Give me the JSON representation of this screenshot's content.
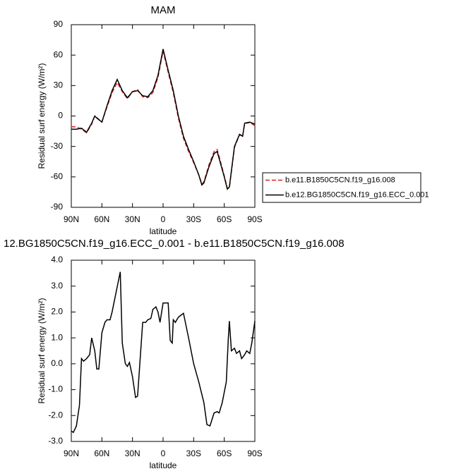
{
  "chart_data": [
    {
      "type": "line",
      "title": "MAM",
      "x_label": "latitude",
      "y_label": "Residual surf energy (W/m²)",
      "x": [
        90,
        85,
        80,
        75,
        70,
        67,
        65,
        60,
        55,
        50,
        45,
        40,
        35,
        30,
        25,
        20,
        15,
        10,
        5,
        0,
        -5,
        -10,
        -15,
        -20,
        -25,
        -30,
        -35,
        -38,
        -40,
        -45,
        -50,
        -53,
        -55,
        -60,
        -63,
        -65,
        -70,
        -75,
        -78,
        -80,
        -85,
        -90
      ],
      "series": [
        {
          "name": "b.e11.B1850C5CN.f19_g16.008",
          "color": "#e02020",
          "dash": true,
          "values": [
            -10.5,
            -10.8,
            -13,
            -16.5,
            -8,
            0,
            -1.5,
            -6,
            9,
            23,
            33,
            24,
            17,
            24,
            26,
            19,
            18,
            23,
            38,
            64,
            43,
            23,
            -2,
            -22,
            -35,
            -46,
            -58,
            -67,
            -65,
            -48,
            -35,
            -33,
            -40,
            -59,
            -71,
            -71,
            -31,
            -18.5,
            -20,
            -7.5,
            -6.5,
            -9.5
          ]
        },
        {
          "name": "b.e12.BG1850C5CN.f19_g16.ECC_0.001",
          "color": "#000000",
          "dash": false,
          "values": [
            -13,
            -13,
            -12,
            -16,
            -7,
            0,
            -2,
            -6,
            10,
            25,
            36,
            25,
            18,
            24,
            25,
            20,
            19,
            25,
            40,
            66,
            45,
            25,
            0,
            -20,
            -33,
            -45,
            -58,
            -68,
            -66,
            -50,
            -37,
            -35,
            -42,
            -60,
            -72,
            -70,
            -30,
            -18,
            -20,
            -7,
            -6,
            -8
          ]
        }
      ],
      "xlim": [
        90,
        -90
      ],
      "xticks": [
        {
          "value": 90,
          "label": "90N"
        },
        {
          "value": 60,
          "label": "60N"
        },
        {
          "value": 30,
          "label": "30N"
        },
        0,
        {
          "value": -30,
          "label": "30S"
        },
        {
          "value": -60,
          "label": "60S"
        },
        {
          "value": -90,
          "label": "90S"
        }
      ],
      "ylim": [
        -90,
        90
      ],
      "yticks": [
        90,
        60,
        30,
        0,
        -30,
        -60,
        -90
      ],
      "legend": "right"
    },
    {
      "type": "line",
      "title": "12.BG1850C5CN.f19_g16.ECC_0.001 - b.e11.B1850C5CN.f19_g16.008",
      "x_label": "latitude",
      "y_label": "Residual surf energy (W/m²)",
      "x": [
        90,
        88,
        85,
        82,
        80,
        78,
        75,
        72,
        70,
        67,
        65,
        63,
        60,
        57,
        55,
        52,
        50,
        42,
        40,
        37,
        35,
        33,
        30,
        27,
        25,
        20,
        17,
        15,
        12,
        10,
        7,
        5,
        3,
        0,
        -3,
        -5,
        -7,
        -9,
        -10,
        -12,
        -15,
        -20,
        -25,
        -30,
        -35,
        -40,
        -43,
        -46,
        -50,
        -53,
        -55,
        -58,
        -62,
        -64,
        -65,
        -67,
        -70,
        -72,
        -75,
        -77,
        -80,
        -82,
        -85,
        -87,
        -90
      ],
      "values": [
        -2.6,
        -2.65,
        -2.4,
        -1.6,
        0.2,
        0.1,
        0.2,
        0.35,
        1.0,
        0.5,
        -0.2,
        -0.2,
        1.2,
        1.6,
        1.7,
        1.7,
        2.0,
        3.55,
        0.8,
        0,
        -0.1,
        0.05,
        -0.5,
        -1.3,
        -1.25,
        1.6,
        1.6,
        1.7,
        1.75,
        2.1,
        2.2,
        2.0,
        1.6,
        2.35,
        2.35,
        2.35,
        0.9,
        0.8,
        1.7,
        1.6,
        1.8,
        1.95,
        1.0,
        0.0,
        -0.7,
        -1.5,
        -2.35,
        -2.4,
        -1.9,
        -1.85,
        -1.9,
        -1.5,
        -0.7,
        1.0,
        1.65,
        0.5,
        0.6,
        0.4,
        0.5,
        0.2,
        0.35,
        0.5,
        0.4,
        0.8,
        1.65
      ],
      "color": "#000000",
      "xlim": [
        90,
        -90
      ],
      "xticks": [
        {
          "value": 90,
          "label": "90N"
        },
        {
          "value": 60,
          "label": "60N"
        },
        {
          "value": 30,
          "label": "30N"
        },
        0,
        {
          "value": -30,
          "label": "30S"
        },
        {
          "value": -60,
          "label": "60S"
        },
        {
          "value": -90,
          "label": "90S"
        }
      ],
      "ylim": [
        -3,
        4
      ],
      "yticks": [
        {
          "value": 4,
          "label": "4.0"
        },
        {
          "value": 3,
          "label": "3.0"
        },
        {
          "value": 2,
          "label": "2.0"
        },
        {
          "value": 1,
          "label": "1.0"
        },
        {
          "value": 0,
          "label": "0.0"
        },
        {
          "value": -1,
          "label": "-1.0"
        },
        {
          "value": -2,
          "label": "-2.0"
        },
        {
          "value": -3,
          "label": "-3.0"
        }
      ]
    }
  ]
}
